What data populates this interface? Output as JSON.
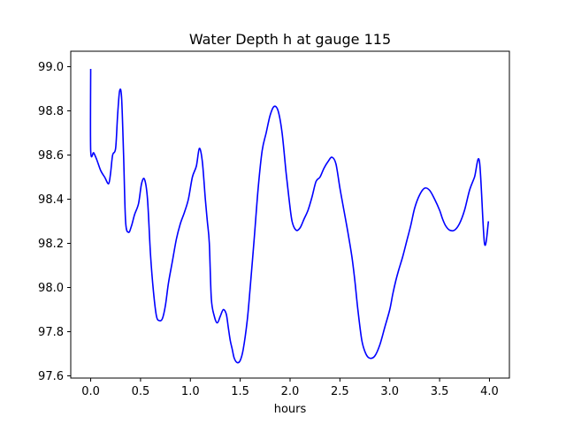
{
  "chart_data": {
    "type": "line",
    "title": "Water Depth h at gauge 115",
    "xlabel": "hours",
    "ylabel": "",
    "xlim": [
      -0.2,
      4.2
    ],
    "ylim": [
      97.59,
      99.07
    ],
    "xticks": [
      0.0,
      0.5,
      1.0,
      1.5,
      2.0,
      2.5,
      3.0,
      3.5,
      4.0
    ],
    "xtick_labels": [
      "0.0",
      "0.5",
      "1.0",
      "1.5",
      "2.0",
      "2.5",
      "3.0",
      "3.5",
      "4.0"
    ],
    "yticks": [
      97.6,
      97.8,
      98.0,
      98.2,
      98.4,
      98.6,
      98.8,
      99.0
    ],
    "ytick_labels": [
      "97.6",
      "97.8",
      "98.0",
      "98.2",
      "98.4",
      "98.6",
      "98.8",
      "99.0"
    ],
    "grid": false,
    "series": [
      {
        "color": "#0000ff",
        "x": [
          0.0,
          0.0,
          0.03,
          0.06,
          0.1,
          0.14,
          0.18,
          0.2,
          0.22,
          0.25,
          0.27,
          0.29,
          0.31,
          0.33,
          0.35,
          0.38,
          0.41,
          0.44,
          0.48,
          0.51,
          0.54,
          0.57,
          0.6,
          0.63,
          0.66,
          0.69,
          0.72,
          0.75,
          0.78,
          0.82,
          0.86,
          0.9,
          0.94,
          0.98,
          1.02,
          1.06,
          1.09,
          1.12,
          1.15,
          1.17,
          1.19,
          1.21,
          1.24,
          1.27,
          1.3,
          1.33,
          1.36,
          1.38,
          1.4,
          1.42,
          1.44,
          1.47,
          1.5,
          1.53,
          1.57,
          1.6,
          1.64,
          1.68,
          1.72,
          1.76,
          1.8,
          1.84,
          1.88,
          1.92,
          1.96,
          1.99,
          2.02,
          2.06,
          2.1,
          2.14,
          2.18,
          2.22,
          2.26,
          2.3,
          2.34,
          2.38,
          2.42,
          2.46,
          2.5,
          2.54,
          2.58,
          2.62,
          2.65,
          2.68,
          2.72,
          2.76,
          2.8,
          2.85,
          2.9,
          2.95,
          3.0,
          3.03,
          3.06,
          3.09,
          3.13,
          3.17,
          3.21,
          3.25,
          3.3,
          3.35,
          3.4,
          3.45,
          3.5,
          3.53,
          3.56,
          3.6,
          3.65,
          3.7,
          3.75,
          3.8,
          3.85,
          3.9,
          3.95,
          3.99
        ],
        "y": [
          98.99,
          98.62,
          98.61,
          98.58,
          98.53,
          98.5,
          98.47,
          98.52,
          98.6,
          98.63,
          98.78,
          98.89,
          98.86,
          98.6,
          98.3,
          98.25,
          98.28,
          98.33,
          98.38,
          98.47,
          98.49,
          98.4,
          98.15,
          97.98,
          97.87,
          97.85,
          97.86,
          97.92,
          98.02,
          98.12,
          98.22,
          98.29,
          98.34,
          98.4,
          98.5,
          98.55,
          98.63,
          98.57,
          98.4,
          98.3,
          98.2,
          97.95,
          97.87,
          97.84,
          97.87,
          97.9,
          97.88,
          97.82,
          97.76,
          97.72,
          97.68,
          97.66,
          97.67,
          97.72,
          97.85,
          98.0,
          98.22,
          98.45,
          98.62,
          98.7,
          98.78,
          98.82,
          98.8,
          98.7,
          98.52,
          98.4,
          98.3,
          98.26,
          98.27,
          98.31,
          98.35,
          98.41,
          98.48,
          98.5,
          98.54,
          98.57,
          98.59,
          98.56,
          98.45,
          98.35,
          98.25,
          98.14,
          98.03,
          97.9,
          97.76,
          97.7,
          97.68,
          97.69,
          97.74,
          97.82,
          97.9,
          97.97,
          98.03,
          98.08,
          98.14,
          98.21,
          98.28,
          98.36,
          98.42,
          98.45,
          98.44,
          98.4,
          98.35,
          98.31,
          98.28,
          98.26,
          98.26,
          98.29,
          98.35,
          98.44,
          98.5,
          98.57,
          98.2,
          98.3
        ]
      }
    ]
  }
}
